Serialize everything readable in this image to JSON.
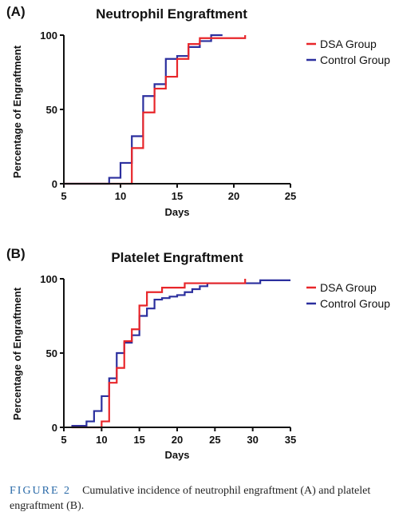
{
  "chart_data": [
    {
      "type": "line",
      "step": true,
      "panel_label": "(A)",
      "title": "Neutrophil Engraftment",
      "xlabel": "Days",
      "ylabel": "Percentage of Engraftment",
      "xlim": [
        5,
        25
      ],
      "ylim": [
        0,
        100
      ],
      "xticks": [
        5,
        10,
        15,
        20,
        25
      ],
      "yticks": [
        0,
        50,
        100
      ],
      "legend": "top-right",
      "series": [
        {
          "name": "DSA Group",
          "color": "#e8262a",
          "x": [
            5,
            10,
            11,
            12,
            13,
            14,
            15,
            16,
            17,
            21
          ],
          "y": [
            0,
            0,
            24,
            48,
            64,
            72,
            84,
            94,
            98,
            100
          ]
        },
        {
          "name": "Control Group",
          "color": "#2b2f9e",
          "x": [
            5,
            9,
            10,
            11,
            12,
            13,
            14,
            15,
            16,
            17,
            18,
            19
          ],
          "y": [
            0,
            4,
            14,
            32,
            59,
            67,
            84,
            86,
            92,
            96,
            100,
            100
          ]
        }
      ]
    },
    {
      "type": "line",
      "step": true,
      "panel_label": "(B)",
      "title": "Platelet Engraftment",
      "xlabel": "Days",
      "ylabel": "Percentage of Engraftment",
      "xlim": [
        5,
        35
      ],
      "ylim": [
        0,
        100
      ],
      "xticks": [
        5,
        10,
        15,
        20,
        25,
        30,
        35
      ],
      "yticks": [
        0,
        50,
        100
      ],
      "legend": "top-right",
      "series": [
        {
          "name": "DSA Group",
          "color": "#e8262a",
          "x": [
            6,
            10,
            11,
            12,
            13,
            14,
            15,
            16,
            18,
            21,
            29
          ],
          "y": [
            0,
            4,
            30,
            40,
            58,
            66,
            82,
            91,
            94,
            97,
            100
          ]
        },
        {
          "name": "Control Group",
          "color": "#2b2f9e",
          "x": [
            6,
            8,
            9,
            10,
            11,
            12,
            13,
            14,
            15,
            16,
            17,
            18,
            19,
            20,
            21,
            22,
            23,
            24,
            29,
            31,
            35
          ],
          "y": [
            1,
            4,
            11,
            21,
            33,
            50,
            57,
            62,
            75,
            80,
            86,
            87,
            88,
            89,
            91,
            93,
            95,
            97,
            97,
            99,
            99
          ]
        }
      ]
    }
  ],
  "caption": {
    "figure_label": "FIGURE 2",
    "text": "Cumulative incidence of neutrophil engraftment (A) and platelet engraftment (B)."
  }
}
